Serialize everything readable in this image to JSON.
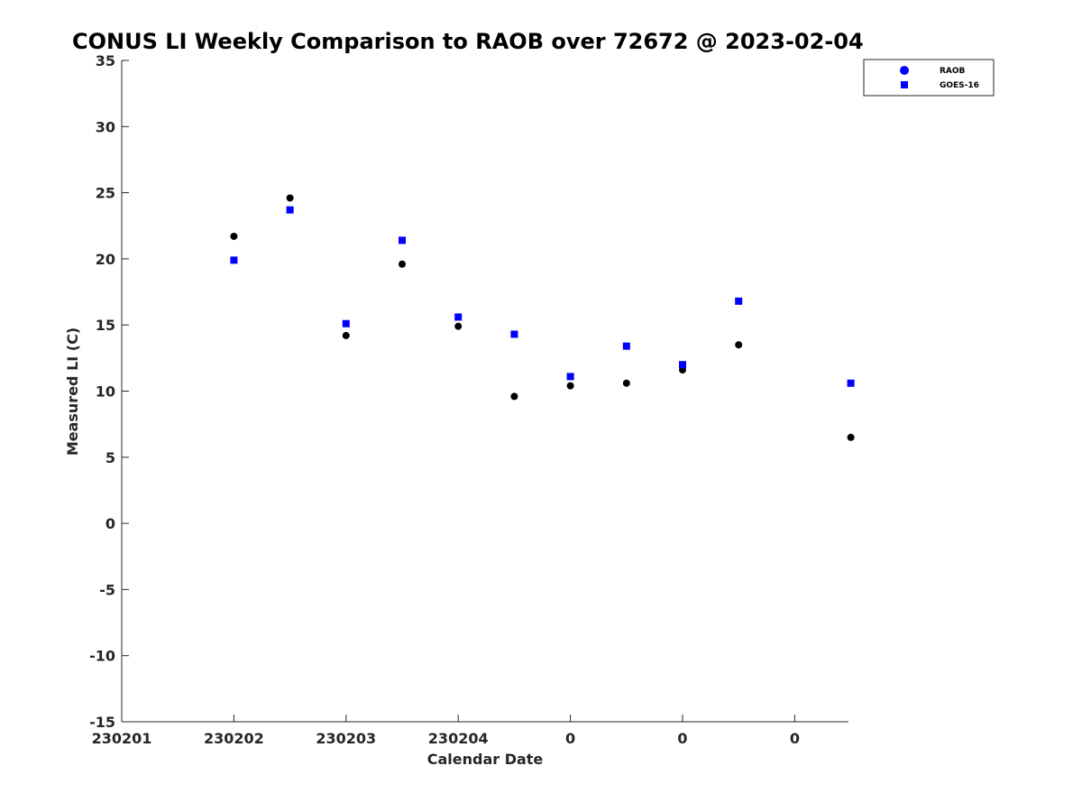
{
  "chart_data": {
    "type": "scatter",
    "title": "CONUS LI Weekly Comparison to RAOB over 72672 @ 2023-02-04",
    "xlabel": "Calendar Date",
    "ylabel": "Measured LI (C)",
    "ylim": [
      -15,
      35
    ],
    "yticks": [
      -15,
      -10,
      -5,
      0,
      5,
      10,
      15,
      20,
      25,
      30,
      35
    ],
    "xlim": [
      0,
      13
    ],
    "xticks": [
      0,
      2,
      4,
      6,
      8,
      10,
      12
    ],
    "xtick_labels": [
      "230201",
      "230202",
      "230203",
      "230204",
      "0",
      "0",
      "0"
    ],
    "legend_position": "top-right",
    "series": [
      {
        "name": "RAOB",
        "marker": "circle",
        "color": "#000000",
        "legend_color": "#0000ff",
        "x": [
          2,
          3,
          4,
          5,
          6,
          7,
          8,
          9,
          10,
          11,
          13
        ],
        "y": [
          21.7,
          24.6,
          14.2,
          19.6,
          14.9,
          9.6,
          10.4,
          10.6,
          11.6,
          13.5,
          6.5
        ]
      },
      {
        "name": "GOES-16",
        "marker": "square",
        "color": "#0000ff",
        "legend_color": "#0000ff",
        "x": [
          2,
          3,
          4,
          5,
          6,
          7,
          8,
          9,
          10,
          11,
          13
        ],
        "y": [
          19.9,
          23.7,
          15.1,
          21.4,
          15.6,
          14.3,
          11.1,
          13.4,
          12.0,
          16.8,
          10.6
        ]
      }
    ]
  }
}
